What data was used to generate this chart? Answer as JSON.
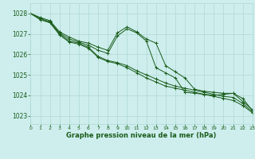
{
  "title": "Graphe pression niveau de la mer (hPa)",
  "bg_color": "#cdeeed",
  "grid_color": "#b0d8d4",
  "line_color": "#1a5c1a",
  "xlim": [
    0,
    23
  ],
  "ylim": [
    1022.6,
    1028.5
  ],
  "yticks": [
    1023,
    1024,
    1025,
    1026,
    1027,
    1028
  ],
  "xticks": [
    0,
    1,
    2,
    3,
    4,
    5,
    6,
    7,
    8,
    9,
    10,
    11,
    12,
    13,
    14,
    15,
    16,
    17,
    18,
    19,
    20,
    21,
    22,
    23
  ],
  "series": [
    {
      "x": [
        0,
        1,
        2,
        3,
        4,
        5,
        6,
        7,
        8,
        9,
        10,
        11,
        12,
        13,
        14,
        15,
        16,
        17,
        18,
        19,
        20,
        21,
        22,
        23
      ],
      "y": [
        1028.0,
        1027.8,
        1027.65,
        1027.1,
        1026.85,
        1026.65,
        1026.55,
        1026.35,
        1026.2,
        1027.05,
        1027.35,
        1027.1,
        1026.75,
        1026.55,
        1025.45,
        1025.15,
        1024.85,
        1024.3,
        1024.2,
        1024.15,
        1024.1,
        1024.1,
        1023.85,
        1023.25
      ]
    },
    {
      "x": [
        0,
        1,
        2,
        3,
        4,
        5,
        6,
        7,
        8,
        9,
        10,
        11,
        12,
        13,
        14,
        15,
        16,
        17,
        18,
        19,
        20,
        21,
        22,
        23
      ],
      "y": [
        1028.0,
        1027.75,
        1027.6,
        1027.05,
        1026.75,
        1026.6,
        1026.45,
        1026.2,
        1026.05,
        1026.9,
        1027.25,
        1027.05,
        1026.65,
        1025.35,
        1025.1,
        1024.85,
        1024.15,
        1024.1,
        1024.05,
        1024.0,
        1024.05,
        1024.1,
        1023.7,
        1023.3
      ]
    },
    {
      "x": [
        0,
        1,
        2,
        3,
        4,
        5,
        6,
        7,
        8,
        9,
        10,
        11,
        12,
        13,
        14,
        15,
        16,
        17,
        18,
        19,
        20,
        21,
        22,
        23
      ],
      "y": [
        1028.0,
        1027.7,
        1027.55,
        1027.0,
        1026.65,
        1026.55,
        1026.35,
        1025.9,
        1025.7,
        1025.6,
        1025.45,
        1025.2,
        1025.0,
        1024.8,
        1024.6,
        1024.45,
        1024.35,
        1024.25,
        1024.15,
        1024.05,
        1023.95,
        1023.9,
        1023.6,
        1023.2
      ]
    },
    {
      "x": [
        0,
        1,
        2,
        3,
        4,
        5,
        6,
        7,
        8,
        9,
        10,
        11,
        12,
        13,
        14,
        15,
        16,
        17,
        18,
        19,
        20,
        21,
        22,
        23
      ],
      "y": [
        1028.0,
        1027.7,
        1027.55,
        1026.95,
        1026.6,
        1026.5,
        1026.3,
        1025.85,
        1025.65,
        1025.55,
        1025.35,
        1025.1,
        1024.85,
        1024.65,
        1024.45,
        1024.35,
        1024.25,
        1024.15,
        1024.05,
        1023.95,
        1023.85,
        1023.75,
        1023.5,
        1023.15
      ]
    }
  ]
}
